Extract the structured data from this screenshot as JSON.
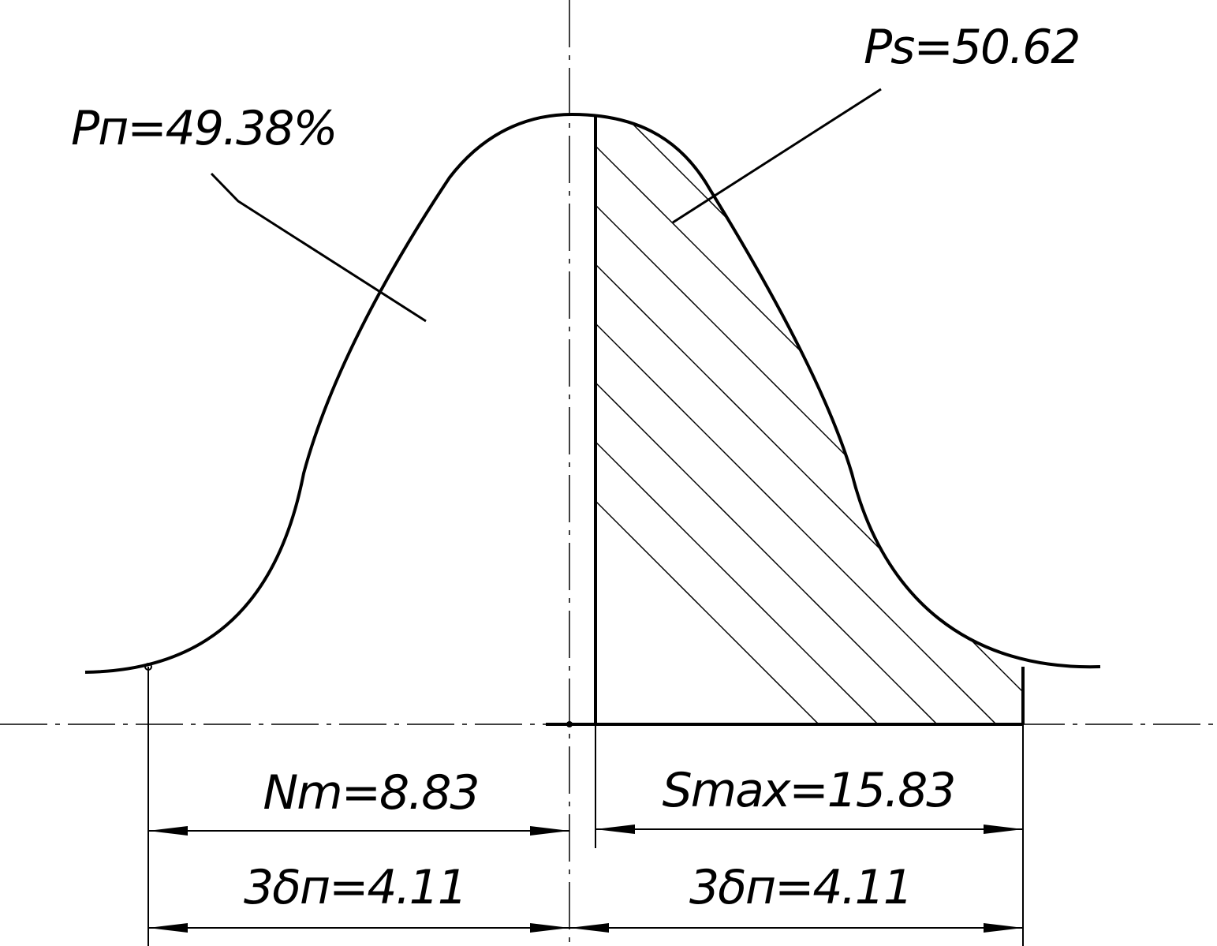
{
  "labels": {
    "pn": "Pп=49.38%",
    "ps": "Ps=50.62",
    "nm": "Nm=8.83",
    "smax": "Smax=15.83",
    "sigma_left": "3δп=4.11",
    "sigma_right": "3δп=4.11"
  }
}
